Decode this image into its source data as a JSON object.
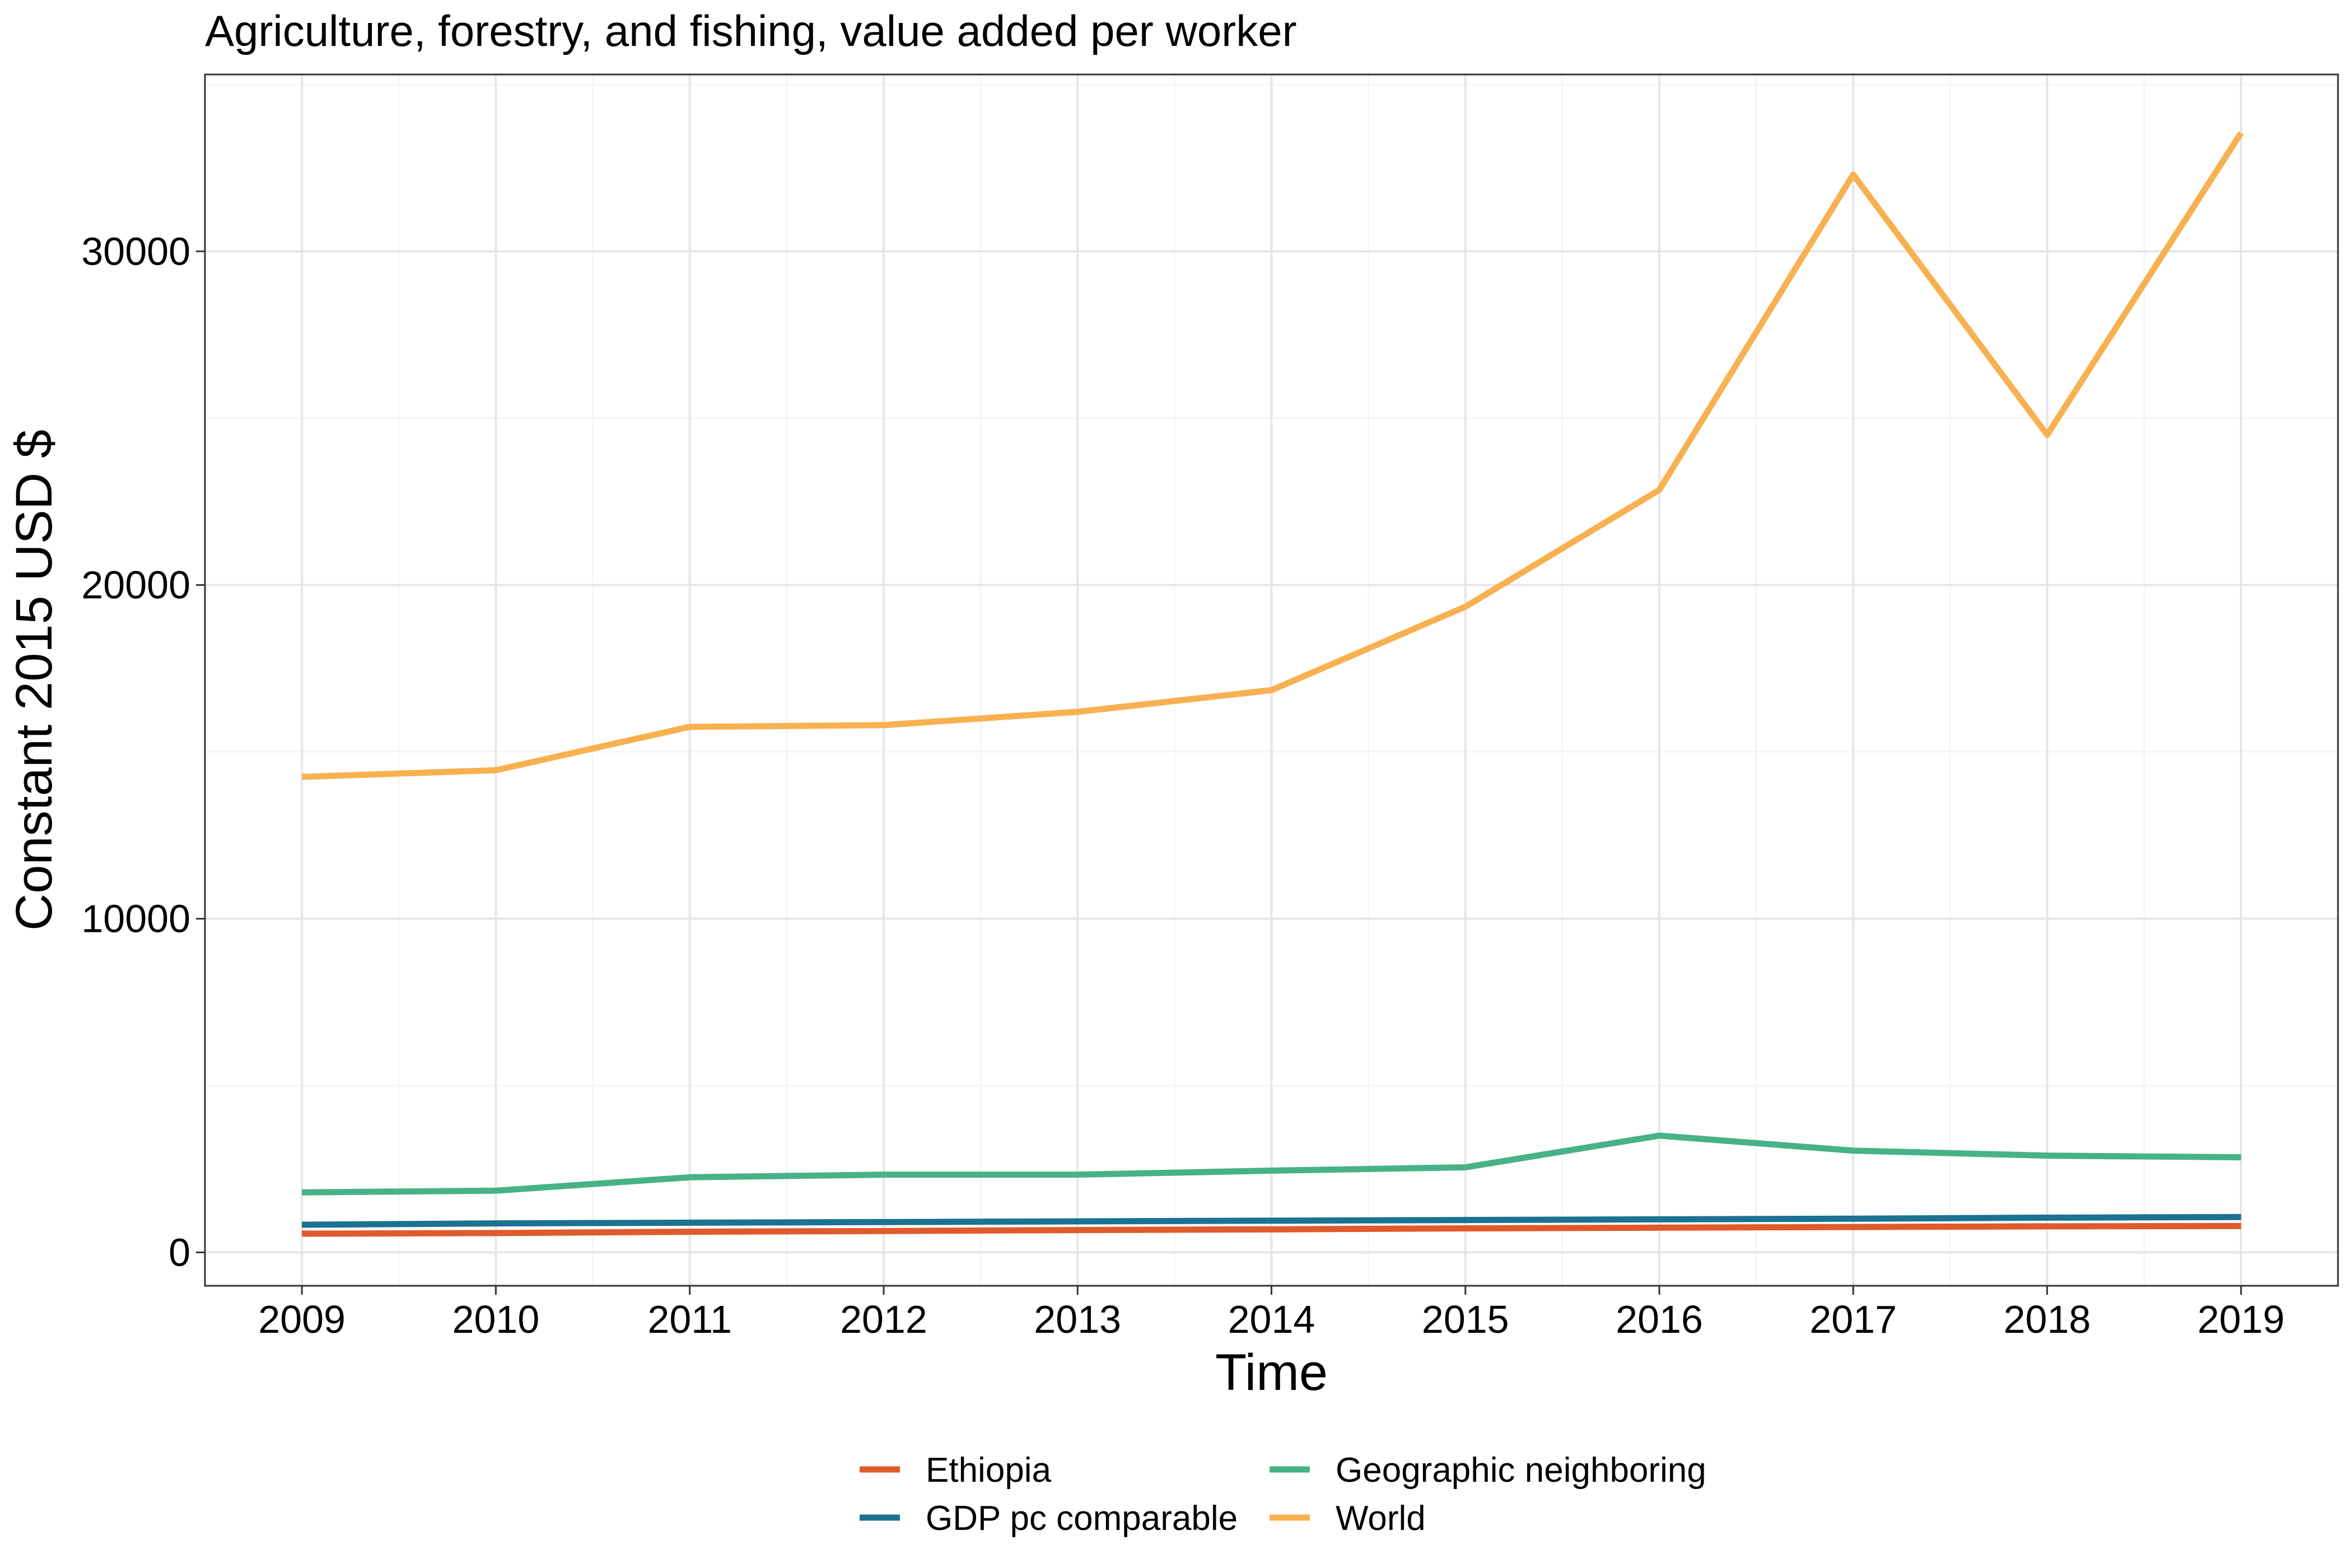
{
  "chart_data": {
    "type": "line",
    "title": "Agriculture, forestry, and fishing, value added per worker",
    "xlabel": "Time",
    "ylabel": "Constant 2015 USD $",
    "x": [
      2009,
      2010,
      2011,
      2012,
      2013,
      2014,
      2015,
      2016,
      2017,
      2018,
      2019
    ],
    "xlim": [
      2008.5,
      2019.5
    ],
    "ylim": [
      -1000,
      35300
    ],
    "yticks": [
      0,
      10000,
      20000,
      30000
    ],
    "grid": true,
    "legend_position": "bottom",
    "series": [
      {
        "name": "Ethiopia",
        "color": "#E05A2B",
        "values": [
          560,
          580,
          620,
          640,
          670,
          690,
          720,
          740,
          760,
          780,
          790
        ]
      },
      {
        "name": "GDP pc comparable",
        "color": "#1B7291",
        "values": [
          830,
          870,
          890,
          910,
          930,
          950,
          970,
          990,
          1010,
          1040,
          1060
        ]
      },
      {
        "name": "Geographic neighboring",
        "color": "#47B287",
        "values": [
          1800,
          1850,
          2250,
          2330,
          2330,
          2450,
          2550,
          3500,
          3050,
          2900,
          2850
        ]
      },
      {
        "name": "World",
        "color": "#F8B150",
        "values": [
          14250,
          14450,
          15750,
          15800,
          16200,
          16850,
          19350,
          22850,
          32300,
          24500,
          33550
        ]
      }
    ]
  }
}
